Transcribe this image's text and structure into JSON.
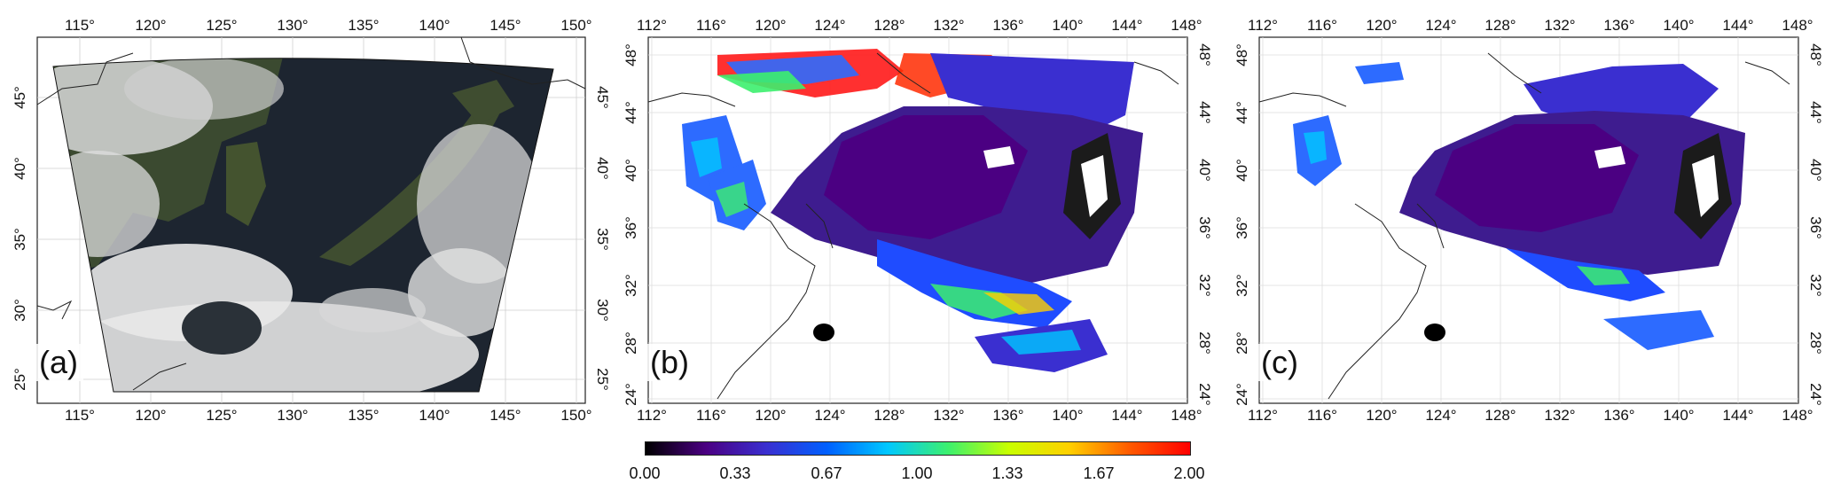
{
  "panels": [
    {
      "label": "(a)",
      "top_lon_ticks": [
        "115°",
        "120°",
        "125°",
        "130°",
        "135°",
        "140°",
        "145°",
        "150°"
      ],
      "bottom_lon_ticks": [
        "115°",
        "120°",
        "125°",
        "130°",
        "135°",
        "140°",
        "145°",
        "150°"
      ],
      "left_lat_ticks": [
        "45°",
        "40°",
        "35°",
        "30°",
        "25°"
      ],
      "right_lat_ticks": [
        "45°",
        "40°",
        "35°",
        "30°",
        "25°"
      ]
    },
    {
      "label": "(b)",
      "top_lon_ticks": [
        "112°",
        "116°",
        "120°",
        "124°",
        "128°",
        "132°",
        "136°",
        "140°",
        "144°",
        "148°"
      ],
      "bottom_lon_ticks": [
        "112°",
        "116°",
        "120°",
        "124°",
        "128°",
        "132°",
        "136°",
        "140°",
        "144°",
        "148°"
      ],
      "left_lat_ticks": [
        "48°",
        "44°",
        "40°",
        "36°",
        "32°",
        "28°",
        "24°"
      ],
      "right_lat_ticks": [
        "48°",
        "44°",
        "40°",
        "36°",
        "32°",
        "28°",
        "24°"
      ]
    },
    {
      "label": "(c)",
      "top_lon_ticks": [
        "112°",
        "116°",
        "120°",
        "124°",
        "128°",
        "132°",
        "136°",
        "140°",
        "144°",
        "148°"
      ],
      "bottom_lon_ticks": [
        "112°",
        "116°",
        "120°",
        "124°",
        "128°",
        "132°",
        "136°",
        "140°",
        "144°",
        "148°"
      ],
      "left_lat_ticks": [
        "48°",
        "44°",
        "40°",
        "36°",
        "32°",
        "28°",
        "24°"
      ],
      "right_lat_ticks": [
        "48°",
        "44°",
        "40°",
        "36°",
        "32°",
        "28°",
        "24°"
      ]
    }
  ],
  "colorbar": {
    "ticks": [
      "0.00",
      "0.33",
      "0.67",
      "1.00",
      "1.33",
      "1.67",
      "2.00"
    ],
    "range": [
      0,
      2
    ],
    "colors": [
      "#000000",
      "#4b0082",
      "#3a2fd0",
      "#0060ff",
      "#00c8ff",
      "#3cf06e",
      "#c8ff00",
      "#ffd000",
      "#ff5a00",
      "#ff0000"
    ]
  },
  "colors": {
    "true_color_ocean": "#1d2530",
    "true_color_land": "#3b4a30",
    "cloud": "#dcdcdc",
    "coastline": "#222222",
    "grid": "#cccccc"
  }
}
